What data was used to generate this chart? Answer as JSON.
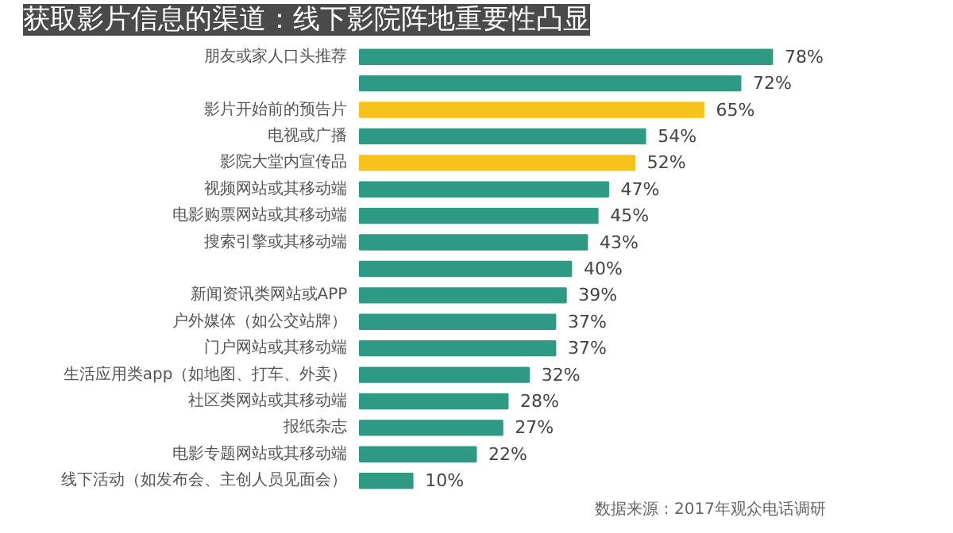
{
  "chart_data": {
    "type": "bar",
    "orientation": "horizontal",
    "title": "获取影片信息的渠道：线下影院阵地重要性凸显",
    "categories": [
      "朋友或家人口头推荐",
      null,
      "影片开始前的预告片",
      "电视或广播",
      "影院大堂内宣传品",
      "视频网站或其移动端",
      "电影购票网站或其移动端",
      "搜索引擎或其移动端",
      null,
      "新闻资讯类网站或APP",
      "户外媒体（如公交站牌）",
      "门户网站或其移动端",
      "生活应用类app（如地图、打车、外卖）",
      "社区类网站或其移动端",
      "报纸杂志",
      "电影专题网站或其移动端",
      "线下活动（如发布会、主创人员见面会）"
    ],
    "values": [
      78,
      72,
      65,
      54,
      52,
      47,
      45,
      43,
      40,
      39,
      37,
      37,
      32,
      28,
      27,
      22,
      10
    ],
    "value_labels": [
      "78%",
      "72%",
      "65%",
      "54%",
      "52%",
      "47%",
      "45%",
      "43%",
      "40%",
      "39%",
      "37%",
      "37%",
      "32%",
      "28%",
      "27%",
      "22%",
      "10%"
    ],
    "colors": [
      "#2e9a83",
      "#2e9a83",
      "#f5c31c",
      "#2e9a83",
      "#f5c31c",
      "#2e9a83",
      "#2e9a83",
      "#2e9a83",
      "#2e9a83",
      "#2e9a83",
      "#2e9a83",
      "#2e9a83",
      "#2e9a83",
      "#2e9a83",
      "#2e9a83",
      "#2e9a83",
      "#2e9a83"
    ],
    "annotations": [
      "数据来源：2017年观众电话调研"
    ],
    "grid": false
  }
}
